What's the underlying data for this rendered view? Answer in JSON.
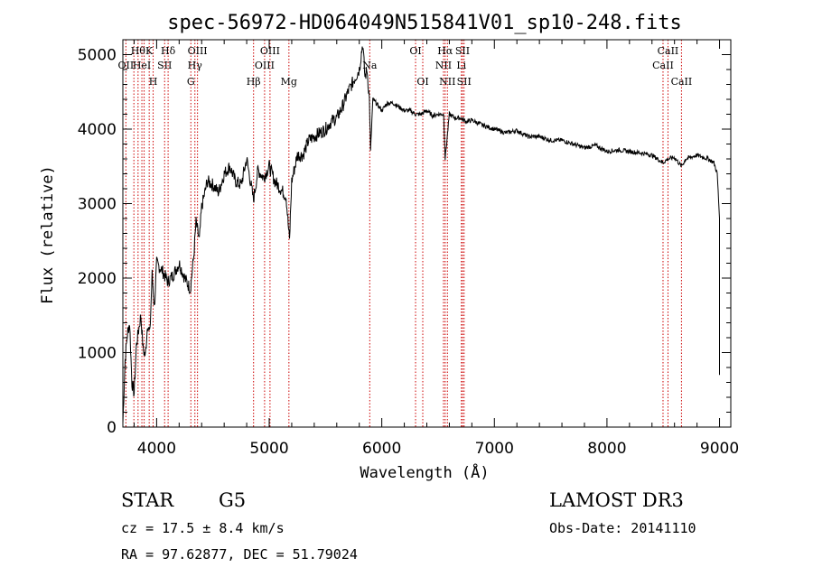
{
  "chart_data": {
    "type": "line",
    "title": "spec-56972-HD064049N515841V01_sp10-248.fits",
    "xlabel": "Wavelength (Å)",
    "ylabel": "Flux (relative)",
    "xlim": [
      3700,
      9100
    ],
    "ylim": [
      0,
      5200
    ],
    "xticks": [
      4000,
      5000,
      6000,
      7000,
      8000,
      9000
    ],
    "yticks": [
      0,
      1000,
      2000,
      3000,
      4000,
      5000
    ],
    "series": [
      {
        "x": [
          3700,
          3720,
          3740,
          3760,
          3780,
          3800,
          3820,
          3840,
          3860,
          3880,
          3900,
          3920,
          3940,
          3960,
          3980,
          4000,
          4050,
          4100,
          4150,
          4200,
          4250,
          4300,
          4330,
          4350,
          4380,
          4400,
          4450,
          4500,
          4550,
          4600,
          4650,
          4700,
          4750,
          4800,
          4860,
          4900,
          4950,
          5000,
          5050,
          5100,
          5150,
          5180,
          5200,
          5250,
          5300,
          5350,
          5400,
          5450,
          5500,
          5550,
          5600,
          5650,
          5700,
          5750,
          5800,
          5830,
          5850,
          5870,
          5890,
          5900,
          5920,
          5950,
          6000,
          6050,
          6100,
          6150,
          6200,
          6250,
          6300,
          6350,
          6400,
          6450,
          6500,
          6550,
          6563,
          6600,
          6650,
          6700,
          6750,
          6800,
          6900,
          7000,
          7100,
          7200,
          7300,
          7400,
          7500,
          7600,
          7700,
          7800,
          7900,
          8000,
          8100,
          8200,
          8300,
          8400,
          8498,
          8542,
          8600,
          8662,
          8700,
          8800,
          8900,
          8950,
          8980,
          9000
        ],
        "y": [
          50,
          900,
          1250,
          1400,
          600,
          450,
          1100,
          1300,
          1500,
          1050,
          950,
          1400,
          1250,
          2050,
          1600,
          2200,
          2100,
          1950,
          2050,
          2200,
          2000,
          1850,
          2300,
          2750,
          2500,
          2950,
          3300,
          3250,
          3150,
          3400,
          3500,
          3300,
          3250,
          3600,
          3050,
          3450,
          3350,
          3500,
          3300,
          3200,
          3100,
          2500,
          3300,
          3650,
          3650,
          3850,
          3900,
          3950,
          4000,
          4100,
          4150,
          4300,
          4500,
          4650,
          4800,
          5150,
          4700,
          4800,
          4400,
          3700,
          4400,
          4350,
          4250,
          4350,
          4350,
          4300,
          4250,
          4250,
          4200,
          4200,
          4250,
          4180,
          4200,
          4200,
          3600,
          4200,
          4150,
          4150,
          4100,
          4120,
          4050,
          4000,
          3950,
          3980,
          3900,
          3900,
          3850,
          3850,
          3800,
          3750,
          3780,
          3700,
          3720,
          3700,
          3680,
          3650,
          3550,
          3600,
          3620,
          3500,
          3600,
          3650,
          3600,
          3550,
          3400,
          2800
        ]
      }
    ],
    "lines": [
      {
        "wl": 3727,
        "label": "OII",
        "row": 2
      },
      {
        "wl": 3798,
        "label": "",
        "row": 0
      },
      {
        "wl": 3835,
        "label": "Hθ",
        "row": 1
      },
      {
        "wl": 3869,
        "label": "HeI",
        "row": 2
      },
      {
        "wl": 3889,
        "label": "",
        "row": 0
      },
      {
        "wl": 3934,
        "label": "K",
        "row": 1
      },
      {
        "wl": 3969,
        "label": "H",
        "row": 3
      },
      {
        "wl": 4071,
        "label": "SII",
        "row": 2
      },
      {
        "wl": 4102,
        "label": "Hδ",
        "row": 1
      },
      {
        "wl": 4304,
        "label": "G",
        "row": 3
      },
      {
        "wl": 4340,
        "label": "Hγ",
        "row": 2
      },
      {
        "wl": 4363,
        "label": "OIII",
        "row": 1
      },
      {
        "wl": 4861,
        "label": "Hβ",
        "row": 3
      },
      {
        "wl": 4959,
        "label": "OIII",
        "row": 2
      },
      {
        "wl": 5007,
        "label": "OIII",
        "row": 1
      },
      {
        "wl": 5175,
        "label": "Mg",
        "row": 3
      },
      {
        "wl": 5893,
        "label": "Na",
        "row": 2
      },
      {
        "wl": 6300,
        "label": "OI",
        "row": 1
      },
      {
        "wl": 6364,
        "label": "OI",
        "row": 3
      },
      {
        "wl": 6548,
        "label": "NII",
        "row": 2
      },
      {
        "wl": 6563,
        "label": "Hα",
        "row": 1
      },
      {
        "wl": 6583,
        "label": "NII",
        "row": 3
      },
      {
        "wl": 6707,
        "label": "Li",
        "row": 2
      },
      {
        "wl": 6717,
        "label": "SII",
        "row": 1
      },
      {
        "wl": 6731,
        "label": "SII",
        "row": 3
      },
      {
        "wl": 8498,
        "label": "CaII",
        "row": 2
      },
      {
        "wl": 8542,
        "label": "CaII",
        "row": 1
      },
      {
        "wl": 8662,
        "label": "CaII",
        "row": 3
      }
    ],
    "line_colors": {
      "spectrum": "#000000",
      "marker": "#cc0000"
    }
  },
  "info": {
    "object_class": "STAR",
    "subclass": "G5",
    "survey": "LAMOST DR3",
    "redshift": "cz = 17.5 ± 8.4 km/s",
    "obs_date": "Obs-Date: 20141110",
    "coords": "RA =  97.62877, DEC =  51.79024"
  }
}
